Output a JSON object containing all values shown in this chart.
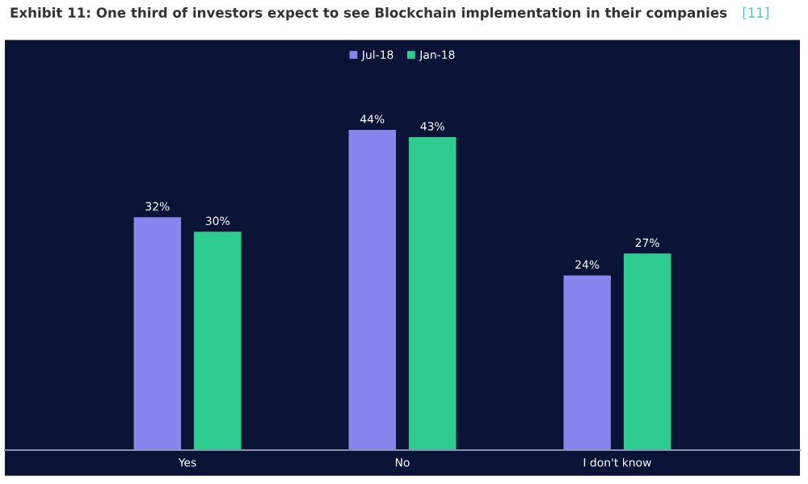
{
  "chart_data": {
    "type": "bar",
    "title": "Exhibit 11: One third of investors expect to see Blockchain implementation in their companies",
    "annotations": [
      "[11]"
    ],
    "categories": [
      "Yes",
      "No",
      "I don't know"
    ],
    "series": [
      {
        "name": "Jul-18",
        "color": "#8a84ee",
        "values": [
          32,
          44,
          24
        ],
        "value_labels": [
          "32%",
          "44%",
          "24%"
        ]
      },
      {
        "name": "Jan-18",
        "color": "#2ecc8f",
        "values": [
          30,
          43,
          27
        ],
        "value_labels": [
          "30%",
          "43%",
          "27%"
        ]
      }
    ],
    "legend": "top",
    "grid": false
  }
}
